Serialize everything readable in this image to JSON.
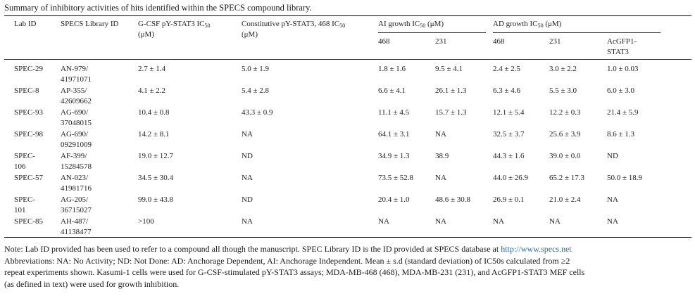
{
  "caption": "Summary of inhibitory activities of hits identified within the SPECS compound library.",
  "headers": {
    "lab_id": "Lab ID",
    "specs_id": "SPECS Library ID",
    "gcsf_line1_pre": "G-CSF pY-STAT3 IC",
    "gcsf_sub": "50",
    "gcsf_line2": "(μM)",
    "const_line1_pre": "Constitutive pY-STAT3, 468 IC",
    "const_sub": "50",
    "const_line2": "(μM)",
    "ai_pre": "AI growth IC",
    "ai_sub": "50",
    "ai_post": " (μM)",
    "ad_pre": "AD growth IC",
    "ad_sub": "50",
    "ad_post": " (μM)",
    "ai_468": "468",
    "ai_231": "231",
    "ad_468": "468",
    "ad_231": "231",
    "ad_gfp_line1": "AcGFP1-",
    "ad_gfp_line2": "STAT3"
  },
  "rows": [
    {
      "lab": [
        "SPEC-29"
      ],
      "specs": [
        "AN-979/",
        "41971071"
      ],
      "gcsf": "2.7 ± 1.4",
      "const": "5.0 ± 1.9",
      "ai468": "1.8 ± 1.6",
      "ai231": "9.5 ± 4.1",
      "ad468": "2.4 ± 2.5",
      "ad231": "3.0 ± 2.2",
      "gfp": "1.0 ± 0.03"
    },
    {
      "lab": [
        "SPEC-8"
      ],
      "specs": [
        "AP-355/",
        "42609662"
      ],
      "gcsf": "4.1 ± 2.2",
      "const": "5.4 ± 2.8",
      "ai468": "6.6 ± 4.1",
      "ai231": "26.1 ± 1.3",
      "ad468": "6.3 ± 4.6",
      "ad231": "5.5 ± 3.0",
      "gfp": "6.0 ± 3.0"
    },
    {
      "lab": [
        "SPEC-93"
      ],
      "specs": [
        "AG-690/",
        "37048015"
      ],
      "gcsf": "10.4 ± 0.8",
      "const": "43.3 ± 0.9",
      "ai468": "11.1 ± 4.5",
      "ai231": "15.7 ± 1.3",
      "ad468": "12.1 ± 5.4",
      "ad231": "12.2 ± 0.3",
      "gfp": "21.4 ± 5.9"
    },
    {
      "lab": [
        "SPEC-98"
      ],
      "specs": [
        "AG-690/",
        "09291009"
      ],
      "gcsf": "14.2 ± 8.1",
      "const": "NA",
      "ai468": "64.1 ± 3.1",
      "ai231": "NA",
      "ad468": "32.5 ± 3.7",
      "ad231": "25.6 ± 3.9",
      "gfp": "8.6 ± 1.3"
    },
    {
      "lab": [
        "SPEC-",
        "106"
      ],
      "specs": [
        "AF-399/",
        "15284578"
      ],
      "gcsf": "19.0 ± 12.7",
      "const": "ND",
      "ai468": "34.9 ± 1.3",
      "ai231": "38.9",
      "ad468": "44.3 ± 1.6",
      "ad231": "39.0 ± 0.0",
      "gfp": "ND"
    },
    {
      "lab": [
        "SPEC-57"
      ],
      "specs": [
        "AN-023/",
        "41981716"
      ],
      "gcsf": "34.5 ± 30.4",
      "const": "NA",
      "ai468": "73.5 ± 52.8",
      "ai231": "NA",
      "ad468": "44.0 ± 26.9",
      "ad231": "65.2 ± 17.3",
      "gfp": "50.0 ± 18.9"
    },
    {
      "lab": [
        "SPEC-",
        "101"
      ],
      "specs": [
        "AG-205/",
        "36715027"
      ],
      "gcsf": "99.0 ± 43.8",
      "const": "ND",
      "ai468": "20.4 ± 1.0",
      "ai231": "48.6 ± 30.8",
      "ad468": "26.9 ± 0.1",
      "ad231": "21.0 ± 2.4",
      "gfp": "NA"
    },
    {
      "lab": [
        "SPEC-85"
      ],
      "specs": [
        "AH-487/",
        "41138477"
      ],
      "gcsf": ">100",
      "const": "NA",
      "ai468": "NA",
      "ai231": "NA",
      "ad468": "NA",
      "ad231": "NA",
      "gfp": "NA"
    }
  ],
  "note": {
    "line1_pre": "Note: Lab ID provided has been used to refer to a compound all though the manuscript. SPEC Library ID is the ID provided at SPECS database at ",
    "link": "http://www.specs.net",
    "line2": "Abbreviations: NA: No Activity; ND: Not Done: AD: Anchorage Dependent, AI: Anchorage Independent. Mean ± s.d (standard deviation) of IC50s calculated from ≥2",
    "line3": "repeat experiments shown. Kasumi-1 cells were used for G-CSF-stimulated pY-STAT3 assays; MDA-MB-468 (468), MDA-MB-231 (231), and AcGFP1-STAT3 MEF cells",
    "line4": "(as defined in text) were used for growth inhibition."
  }
}
